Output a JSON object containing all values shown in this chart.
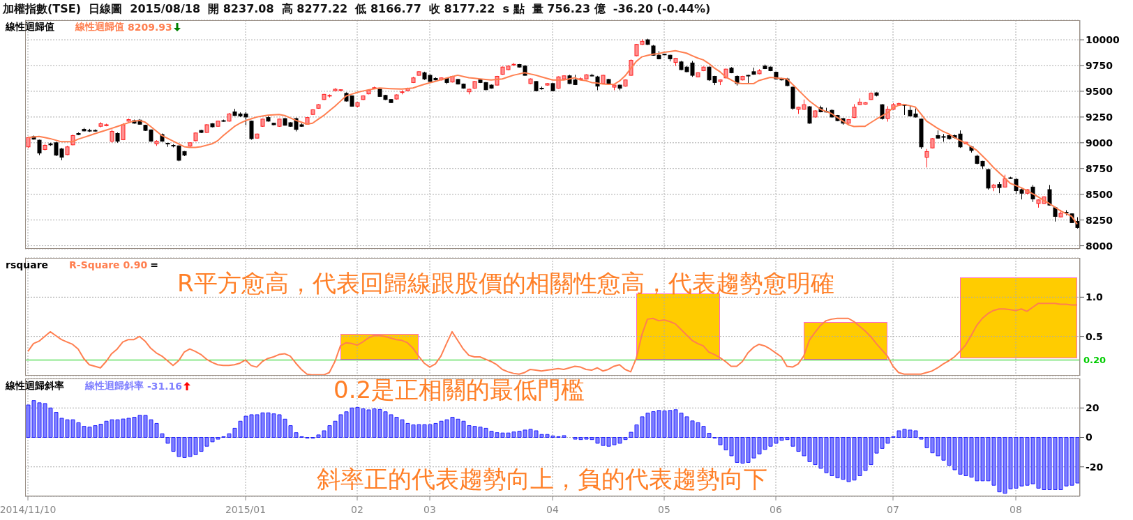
{
  "chart_data": [
    {
      "type": "candlestick",
      "title": "加權指數(TSE)  日線圖  2015/08/18  開 8237.08  高 8277.22  低 8166.77  收 8177.22  s 點  量 756.23 億  -36.20 (-0.44%)",
      "subtitle": "線性迴歸值",
      "categories": [
        "2014/11/10",
        null,
        null,
        null,
        null,
        null,
        null,
        null,
        null,
        null,
        null,
        null,
        null,
        null,
        null,
        null,
        null,
        null,
        null,
        null,
        null,
        null,
        null,
        null,
        null,
        null,
        null,
        null,
        null,
        null,
        null,
        null,
        null,
        null,
        null,
        null,
        null,
        null,
        null,
        "2015/01",
        null,
        null,
        null,
        null,
        null,
        null,
        null,
        null,
        null,
        null,
        null,
        null,
        null,
        null,
        null,
        null,
        null,
        null,
        null,
        "02",
        null,
        null,
        null,
        null,
        null,
        null,
        null,
        null,
        null,
        null,
        null,
        null,
        "03",
        null,
        null,
        null,
        null,
        null,
        null,
        null,
        null,
        null,
        null,
        null,
        null,
        null,
        null,
        null,
        null,
        null,
        null,
        null,
        null,
        null,
        "04",
        null,
        null,
        null,
        null,
        null,
        null,
        null,
        null,
        null,
        null,
        null,
        null,
        null,
        null,
        null,
        null,
        null,
        null,
        null,
        "05",
        null,
        null,
        null,
        null,
        null,
        null,
        null,
        null,
        null,
        null,
        null,
        null,
        null,
        null,
        null,
        null,
        null,
        null,
        null,
        "06",
        null,
        null,
        null,
        null,
        null,
        null,
        null,
        null,
        null,
        null,
        null,
        null,
        null,
        null,
        null,
        null,
        null,
        null,
        null,
        null,
        "07",
        null,
        null,
        null,
        null,
        null,
        null,
        null,
        null,
        null,
        null,
        null,
        null,
        null,
        null,
        null,
        null,
        null,
        null,
        null,
        null,
        null,
        "08",
        null,
        null,
        null,
        null,
        null,
        null,
        null,
        null,
        null,
        null,
        null
      ],
      "ohlc": [
        [
          8960,
          9060,
          8950,
          9050
        ],
        [
          9060,
          9070,
          9030,
          9035
        ],
        [
          9025,
          9030,
          8880,
          8900
        ],
        [
          8935,
          8990,
          8925,
          8975
        ],
        [
          8990,
          9000,
          8970,
          8980
        ],
        [
          9000,
          9010,
          8870,
          8880
        ],
        [
          8940,
          8950,
          8830,
          8860
        ],
        [
          8885,
          8970,
          8880,
          8960
        ],
        [
          8980,
          9080,
          8975,
          9070
        ],
        [
          9090,
          9100,
          9075,
          9080
        ],
        [
          9130,
          9145,
          9110,
          9115
        ],
        [
          9120,
          9135,
          9105,
          9118
        ],
        [
          9120,
          9130,
          9110,
          9118
        ],
        [
          9160,
          9200,
          9150,
          9185
        ],
        [
          9165,
          9185,
          9160,
          9175
        ],
        [
          9015,
          9130,
          9000,
          9110
        ],
        [
          9090,
          9100,
          9000,
          9015
        ],
        [
          9030,
          9190,
          9025,
          9175
        ],
        [
          9210,
          9235,
          9205,
          9225
        ],
        [
          9215,
          9225,
          9185,
          9190
        ],
        [
          9220,
          9230,
          9175,
          9180
        ],
        [
          9170,
          9175,
          9115,
          9120
        ],
        [
          9125,
          9130,
          9010,
          9015
        ],
        [
          8990,
          9025,
          8970,
          9015
        ],
        [
          9080,
          9090,
          9010,
          9015
        ],
        [
          8995,
          9000,
          8960,
          8990
        ],
        [
          8975,
          8985,
          8955,
          8970
        ],
        [
          8970,
          8975,
          8820,
          8830
        ],
        [
          8915,
          8920,
          8870,
          8880
        ],
        [
          8970,
          9005,
          8955,
          9000
        ],
        [
          9020,
          9100,
          9015,
          9095
        ],
        [
          9120,
          9125,
          9095,
          9100
        ],
        [
          9100,
          9180,
          9095,
          9175
        ],
        [
          9185,
          9190,
          9150,
          9155
        ],
        [
          9160,
          9215,
          9155,
          9210
        ],
        [
          9215,
          9225,
          9205,
          9212
        ],
        [
          9210,
          9290,
          9205,
          9280
        ],
        [
          9300,
          9330,
          9260,
          9265
        ],
        [
          9280,
          9295,
          9250,
          9260
        ],
        [
          9280,
          9300,
          9170,
          9250
        ],
        [
          9210,
          9215,
          9030,
          9040
        ],
        [
          9045,
          9090,
          9040,
          9085
        ],
        [
          9160,
          9235,
          9155,
          9230
        ],
        [
          9245,
          9260,
          9205,
          9210
        ],
        [
          9190,
          9195,
          9170,
          9175
        ],
        [
          9160,
          9235,
          9155,
          9230
        ],
        [
          9235,
          9240,
          9165,
          9170
        ],
        [
          9195,
          9200,
          9155,
          9160
        ],
        [
          9235,
          9245,
          9110,
          9130
        ],
        [
          9175,
          9190,
          9155,
          9160
        ],
        [
          9180,
          9250,
          9175,
          9245
        ],
        [
          9275,
          9325,
          9270,
          9320
        ],
        [
          9335,
          9375,
          9330,
          9370
        ],
        [
          9420,
          9475,
          9415,
          9470
        ],
        [
          9455,
          9470,
          9440,
          9460
        ],
        [
          9505,
          9530,
          9500,
          9520
        ],
        [
          9510,
          9520,
          9500,
          9515
        ],
        [
          9480,
          9490,
          9400,
          9405
        ],
        [
          9455,
          9460,
          9350,
          9355
        ],
        [
          9355,
          9395,
          9345,
          9390
        ],
        [
          9420,
          9460,
          9415,
          9455
        ],
        [
          9475,
          9520,
          9470,
          9510
        ],
        [
          9530,
          9545,
          9525,
          9535
        ],
        [
          9520,
          9525,
          9445,
          9450
        ],
        [
          9460,
          9465,
          9415,
          9420
        ],
        [
          9420,
          9425,
          9385,
          9390
        ],
        [
          9425,
          9470,
          9420,
          9465
        ],
        [
          9490,
          9510,
          9470,
          9495
        ],
        [
          9505,
          9535,
          9500,
          9530
        ],
        [
          9585,
          9640,
          9580,
          9630
        ],
        [
          9655,
          9695,
          9650,
          9690
        ],
        [
          9680,
          9690,
          9610,
          9620
        ],
        [
          9655,
          9665,
          9585,
          9595
        ],
        [
          9625,
          9635,
          9605,
          9610
        ],
        [
          9610,
          9635,
          9605,
          9630
        ],
        [
          9625,
          9630,
          9570,
          9585
        ],
        [
          9590,
          9650,
          9585,
          9645
        ],
        [
          9615,
          9620,
          9565,
          9570
        ],
        [
          9570,
          9575,
          9525,
          9530
        ],
        [
          9495,
          9525,
          9470,
          9520
        ],
        [
          9530,
          9600,
          9525,
          9595
        ],
        [
          9610,
          9620,
          9580,
          9585
        ],
        [
          9585,
          9590,
          9510,
          9515
        ],
        [
          9560,
          9565,
          9525,
          9530
        ],
        [
          9560,
          9650,
          9555,
          9645
        ],
        [
          9665,
          9740,
          9660,
          9735
        ],
        [
          9710,
          9750,
          9705,
          9745
        ],
        [
          9760,
          9775,
          9745,
          9762
        ],
        [
          9760,
          9765,
          9730,
          9735
        ],
        [
          9745,
          9755,
          9650,
          9655
        ],
        [
          9575,
          9625,
          9570,
          9620
        ],
        [
          9595,
          9600,
          9500,
          9505
        ],
        [
          9530,
          9545,
          9515,
          9528
        ],
        [
          9560,
          9580,
          9555,
          9575
        ],
        [
          9575,
          9580,
          9500,
          9505
        ],
        [
          9530,
          9645,
          9525,
          9640
        ],
        [
          9620,
          9655,
          9615,
          9650
        ],
        [
          9650,
          9660,
          9570,
          9575
        ],
        [
          9610,
          9660,
          9560,
          9565
        ],
        [
          9620,
          9635,
          9610,
          9622
        ],
        [
          9620,
          9665,
          9615,
          9660
        ],
        [
          9655,
          9670,
          9645,
          9655
        ],
        [
          9640,
          9650,
          9510,
          9550
        ],
        [
          9575,
          9660,
          9570,
          9655
        ],
        [
          9615,
          9620,
          9570,
          9575
        ],
        [
          9540,
          9565,
          9510,
          9560
        ],
        [
          9560,
          9565,
          9510,
          9530
        ],
        [
          9550,
          9615,
          9545,
          9610
        ],
        [
          9655,
          9810,
          9650,
          9800
        ],
        [
          9845,
          9960,
          9840,
          9955
        ],
        [
          9955,
          10005,
          9950,
          9985
        ],
        [
          10000,
          10010,
          9950,
          9955
        ],
        [
          9940,
          9950,
          9845,
          9850
        ],
        [
          9850,
          9890,
          9810,
          9815
        ],
        [
          9860,
          9865,
          9850,
          9855
        ],
        [
          9850,
          9855,
          9790,
          9815
        ],
        [
          9780,
          9825,
          9745,
          9820
        ],
        [
          9785,
          9795,
          9705,
          9710
        ],
        [
          9735,
          9745,
          9685,
          9690
        ],
        [
          9775,
          9795,
          9640,
          9655
        ],
        [
          9640,
          9685,
          9635,
          9680
        ],
        [
          9700,
          9740,
          9695,
          9735
        ],
        [
          9735,
          9740,
          9600,
          9610
        ],
        [
          9645,
          9650,
          9560,
          9585
        ],
        [
          9595,
          9615,
          9560,
          9610
        ],
        [
          9630,
          9720,
          9625,
          9715
        ],
        [
          9725,
          9735,
          9675,
          9680
        ],
        [
          9645,
          9655,
          9555,
          9575
        ],
        [
          9610,
          9650,
          9605,
          9645
        ],
        [
          9655,
          9660,
          9580,
          9655
        ],
        [
          9690,
          9730,
          9660,
          9665
        ],
        [
          9670,
          9715,
          9665,
          9700
        ],
        [
          9745,
          9760,
          9715,
          9720
        ],
        [
          9735,
          9740,
          9695,
          9700
        ],
        [
          9685,
          9690,
          9615,
          9620
        ],
        [
          9625,
          9630,
          9605,
          9610
        ],
        [
          9620,
          9630,
          9550,
          9555
        ],
        [
          9540,
          9545,
          9320,
          9335
        ],
        [
          9325,
          9350,
          9280,
          9345
        ],
        [
          9325,
          9420,
          9320,
          9370
        ],
        [
          9350,
          9355,
          9185,
          9190
        ],
        [
          9250,
          9315,
          9245,
          9310
        ],
        [
          9340,
          9360,
          9295,
          9300
        ],
        [
          9305,
          9340,
          9295,
          9300
        ],
        [
          9315,
          9325,
          9245,
          9250
        ],
        [
          9265,
          9270,
          9210,
          9215
        ],
        [
          9235,
          9240,
          9175,
          9190
        ],
        [
          9190,
          9230,
          9185,
          9225
        ],
        [
          9245,
          9375,
          9240,
          9345
        ],
        [
          9370,
          9430,
          9365,
          9395
        ],
        [
          9375,
          9395,
          9370,
          9390
        ],
        [
          9420,
          9490,
          9415,
          9480
        ],
        [
          9485,
          9490,
          9450,
          9460
        ],
        [
          9370,
          9375,
          9225,
          9235
        ],
        [
          9235,
          9355,
          9205,
          9325
        ],
        [
          9325,
          9385,
          9320,
          9370
        ],
        [
          9370,
          9390,
          9360,
          9380
        ],
        [
          9370,
          9375,
          9270,
          9365
        ],
        [
          9315,
          9360,
          9255,
          9260
        ],
        [
          9280,
          9335,
          9245,
          9250
        ],
        [
          9230,
          9235,
          8940,
          8960
        ],
        [
          8860,
          8940,
          8760,
          8915
        ],
        [
          8950,
          9045,
          8945,
          9040
        ],
        [
          9070,
          9120,
          9040,
          9045
        ],
        [
          9060,
          9085,
          9010,
          9060
        ],
        [
          9070,
          9085,
          9030,
          9040
        ],
        [
          9070,
          9080,
          9040,
          9050
        ],
        [
          9085,
          9120,
          8950,
          8960
        ],
        [
          8990,
          9010,
          8985,
          9005
        ],
        [
          8960,
          8970,
          8905,
          8925
        ],
        [
          8870,
          8885,
          8790,
          8800
        ],
        [
          8820,
          8825,
          8745,
          8775
        ],
        [
          8740,
          8745,
          8545,
          8560
        ],
        [
          8565,
          8600,
          8530,
          8590
        ],
        [
          8595,
          8620,
          8510,
          8565
        ],
        [
          8570,
          8690,
          8565,
          8650
        ],
        [
          8660,
          8670,
          8650,
          8660
        ],
        [
          8645,
          8655,
          8505,
          8535
        ],
        [
          8545,
          8560,
          8450,
          8510
        ],
        [
          8510,
          8550,
          8500,
          8545
        ],
        [
          8570,
          8590,
          8425,
          8455
        ],
        [
          8410,
          8450,
          8370,
          8445
        ],
        [
          8410,
          8480,
          8405,
          8475
        ],
        [
          8545,
          8590,
          8390,
          8395
        ],
        [
          8370,
          8380,
          8235,
          8285
        ],
        [
          8280,
          8350,
          8275,
          8315
        ],
        [
          8325,
          8345,
          8295,
          8320
        ],
        [
          8310,
          8315,
          8225,
          8225
        ],
        [
          8237.08,
          8277.22,
          8166.77,
          8177.22
        ]
      ],
      "series": [
        {
          "type": "line",
          "name": "線性迴歸值",
          "color": "#ff7f50",
          "values": [
            9051,
            9056,
            9062,
            9051,
            9040,
            9025,
            9010,
            9010,
            9010,
            9035,
            9052,
            9070,
            9088,
            9105,
            9122,
            9140,
            9158,
            9176,
            9194,
            9211,
            9216,
            9200,
            9158,
            9114,
            9070,
            9043,
            9016,
            8989,
            8962,
            8955,
            8955,
            8962,
            8976,
            8990,
            9020,
            9070,
            9114,
            9158,
            9190,
            9215,
            9232,
            9250,
            9260,
            9268,
            9272,
            9275,
            9265,
            9242,
            9218,
            9200,
            9182,
            9190,
            9228,
            9265,
            9310,
            9354,
            9404,
            9454,
            9472,
            9489,
            9502,
            9514,
            9523,
            9532,
            9528,
            9525,
            9523,
            9522,
            9527,
            9532,
            9550,
            9567,
            9582,
            9596,
            9612,
            9628,
            9642,
            9656,
            9644,
            9631,
            9626,
            9620,
            9615,
            9610,
            9615,
            9620,
            9638,
            9656,
            9668,
            9681,
            9668,
            9656,
            9640,
            9625,
            9610,
            9610,
            9610,
            9620,
            9631,
            9610,
            9603,
            9585,
            9580,
            9570,
            9567,
            9567,
            9600,
            9650,
            9720,
            9790,
            9834,
            9848,
            9860,
            9866,
            9878,
            9886,
            9894,
            9882,
            9870,
            9846,
            9823,
            9805,
            9770,
            9725,
            9690,
            9640,
            9610,
            9580,
            9574,
            9574,
            9574,
            9605,
            9620,
            9635,
            9630,
            9625,
            9620,
            9567,
            9514,
            9460,
            9407,
            9366,
            9325,
            9304,
            9283,
            9247,
            9211,
            9175,
            9158,
            9159,
            9160,
            9195,
            9229,
            9260,
            9290,
            9340,
            9363,
            9372,
            9360,
            9347,
            9280,
            9211,
            9176,
            9140,
            9110,
            9086,
            9051,
            9024,
            8998,
            8963,
            8927,
            8874,
            8820,
            8760,
            8710,
            8660,
            8606,
            8585,
            8563,
            8535,
            8505,
            8475,
            8440,
            8410,
            8375,
            8339,
            8312,
            8285,
            8210
          ]
        }
      ],
      "annotations": [
        "8209.93"
      ],
      "ylim": [
        7970,
        10190
      ],
      "yticks": [
        8000,
        8250,
        8500,
        8750,
        9000,
        9250,
        9500,
        9750,
        10000
      ],
      "grid": true,
      "legend": "top left",
      "tick_labels": "y"
    },
    {
      "type": "line",
      "title": "rsquare",
      "categories": [
        "2014/11/10",
        null,
        null,
        null,
        null,
        null,
        null,
        null,
        null,
        null,
        null,
        null,
        null,
        null,
        null,
        null,
        null,
        null,
        null,
        null,
        null,
        null,
        null,
        null,
        null,
        null,
        null,
        null,
        null,
        null,
        null,
        null,
        null,
        null,
        null,
        null,
        null,
        null,
        null,
        "2015/01",
        null,
        null,
        null,
        null,
        null,
        null,
        null,
        null,
        null,
        null,
        null,
        null,
        null,
        null,
        null,
        null,
        null,
        null,
        null,
        "02",
        null,
        null,
        null,
        null,
        null,
        null,
        null,
        null,
        null,
        null,
        null,
        null,
        "03",
        null,
        null,
        null,
        null,
        null,
        null,
        null,
        null,
        null,
        null,
        null,
        null,
        null,
        null,
        null,
        null,
        null,
        null,
        null,
        null,
        null,
        "04",
        null,
        null,
        null,
        null,
        null,
        null,
        null,
        null,
        null,
        null,
        null,
        null,
        null,
        null,
        null,
        null,
        null,
        null,
        null,
        "05",
        null,
        null,
        null,
        null,
        null,
        null,
        null,
        null,
        null,
        null,
        null,
        null,
        null,
        null,
        null,
        null,
        null,
        null,
        null,
        "06",
        null,
        null,
        null,
        null,
        null,
        null,
        null,
        null,
        null,
        null,
        null,
        null,
        null,
        null,
        null,
        null,
        null,
        null,
        null,
        null,
        "07",
        null,
        null,
        null,
        null,
        null,
        null,
        null,
        null,
        null,
        null,
        null,
        null,
        null,
        null,
        null,
        null,
        null,
        null,
        null,
        null,
        null,
        "08",
        null,
        null,
        null,
        null,
        null,
        null,
        null,
        null,
        null,
        null,
        null
      ],
      "series": [
        {
          "name": "R-Square",
          "color": "#ff7f50",
          "values": [
            0.31,
            0.41,
            0.44,
            0.5,
            0.56,
            0.51,
            0.46,
            0.43,
            0.4,
            0.34,
            0.22,
            0.14,
            0.12,
            0.1,
            0.18,
            0.28,
            0.34,
            0.43,
            0.46,
            0.46,
            0.5,
            0.44,
            0.35,
            0.29,
            0.25,
            0.19,
            0.13,
            0.19,
            0.3,
            0.34,
            0.31,
            0.27,
            0.21,
            0.17,
            0.14,
            0.13,
            0.13,
            0.14,
            0.16,
            0.2,
            0.13,
            0.11,
            0.18,
            0.22,
            0.24,
            0.27,
            0.28,
            0.25,
            0.16,
            0.08,
            0.02,
            0.01,
            0.01,
            0.01,
            0.04,
            0.18,
            0.38,
            0.42,
            0.41,
            0.39,
            0.43,
            0.48,
            0.51,
            0.51,
            0.5,
            0.48,
            0.46,
            0.45,
            0.42,
            0.35,
            0.25,
            0.16,
            0.11,
            0.15,
            0.25,
            0.41,
            0.56,
            0.45,
            0.34,
            0.26,
            0.24,
            0.24,
            0.21,
            0.18,
            0.14,
            0.08,
            0.05,
            0.03,
            0.02,
            0.04,
            0.08,
            0.07,
            0.06,
            0.07,
            0.08,
            0.09,
            0.08,
            0.1,
            0.12,
            0.11,
            0.08,
            0.07,
            0.1,
            0.06,
            0.08,
            0.12,
            0.14,
            0.08,
            0.05,
            0.22,
            0.52,
            0.72,
            0.73,
            0.7,
            0.71,
            0.69,
            0.66,
            0.59,
            0.52,
            0.45,
            0.41,
            0.38,
            0.3,
            0.27,
            0.23,
            0.18,
            0.12,
            0.12,
            0.18,
            0.29,
            0.36,
            0.4,
            0.38,
            0.34,
            0.29,
            0.24,
            0.12,
            0.11,
            0.15,
            0.25,
            0.45,
            0.55,
            0.64,
            0.7,
            0.72,
            0.73,
            0.73,
            0.73,
            0.69,
            0.63,
            0.57,
            0.5,
            0.41,
            0.33,
            0.25,
            0.12,
            0.04,
            0.02,
            0.02,
            0.02,
            0.02,
            0.04,
            0.06,
            0.1,
            0.15,
            0.19,
            0.24,
            0.31,
            0.39,
            0.51,
            0.64,
            0.73,
            0.79,
            0.83,
            0.85,
            0.85,
            0.84,
            0.83,
            0.85,
            0.82,
            0.87,
            0.92,
            0.92,
            0.92,
            0.92,
            0.91,
            0.91,
            0.9,
            0.9
          ]
        }
      ],
      "ylim": [
        0,
        1.5
      ],
      "yticks": [
        0.5,
        {
          "value": 1,
          "label": "1.0"
        }
      ],
      "ref_lines": [
        {
          "axis": "y",
          "value": 0.2,
          "label": "0.20",
          "color": "#00cc00"
        }
      ],
      "annotations": [
        "0.90",
        "=",
        "R平方愈高，代表回歸線跟股價的相關性愈高，代表趨勢愈明確"
      ],
      "grid": true,
      "legend": "top left",
      "tick_labels": "y"
    },
    {
      "type": "bar",
      "title": "線性迴歸斜率",
      "categories": [
        "2014/11/10",
        null,
        null,
        null,
        null,
        null,
        null,
        null,
        null,
        null,
        null,
        null,
        null,
        null,
        null,
        null,
        null,
        null,
        null,
        null,
        null,
        null,
        null,
        null,
        null,
        null,
        null,
        null,
        null,
        null,
        null,
        null,
        null,
        null,
        null,
        null,
        null,
        null,
        null,
        "2015/01",
        null,
        null,
        null,
        null,
        null,
        null,
        null,
        null,
        null,
        null,
        null,
        null,
        null,
        null,
        null,
        null,
        null,
        null,
        null,
        "02",
        null,
        null,
        null,
        null,
        null,
        null,
        null,
        null,
        null,
        null,
        null,
        null,
        "03",
        null,
        null,
        null,
        null,
        null,
        null,
        null,
        null,
        null,
        null,
        null,
        null,
        null,
        null,
        null,
        null,
        null,
        null,
        null,
        null,
        null,
        "04",
        null,
        null,
        null,
        null,
        null,
        null,
        null,
        null,
        null,
        null,
        null,
        null,
        null,
        null,
        null,
        null,
        null,
        null,
        null,
        "05",
        null,
        null,
        null,
        null,
        null,
        null,
        null,
        null,
        null,
        null,
        null,
        null,
        null,
        null,
        null,
        null,
        null,
        null,
        null,
        "06",
        null,
        null,
        null,
        null,
        null,
        null,
        null,
        null,
        null,
        null,
        null,
        null,
        null,
        null,
        null,
        null,
        null,
        null,
        null,
        null,
        "07",
        null,
        null,
        null,
        null,
        null,
        null,
        null,
        null,
        null,
        null,
        null,
        null,
        null,
        null,
        null,
        null,
        null,
        null,
        null,
        null,
        null,
        "08",
        null,
        null,
        null,
        null,
        null,
        null,
        null,
        null,
        null,
        null,
        null
      ],
      "series": [
        {
          "name": "線性迴歸斜率",
          "color": "#8080ff",
          "values": [
            22,
            25,
            23.5,
            23,
            20,
            17,
            13,
            12,
            12,
            10,
            7.5,
            7,
            8,
            9,
            11,
            12,
            12,
            12.5,
            13,
            13.7,
            15,
            15,
            12,
            9.5,
            2.5,
            -4,
            -9.5,
            -13,
            -13.7,
            -13,
            -11.7,
            -9.5,
            -6,
            -3,
            -1.2,
            0.5,
            2.5,
            6.2,
            11,
            14.4,
            15.4,
            15.4,
            16.7,
            16.7,
            16,
            15.4,
            12.4,
            8,
            3.2,
            0.5,
            -0.5,
            -0.5,
            1.7,
            4.5,
            8,
            11,
            15.4,
            17.4,
            20,
            20.4,
            19.4,
            18.7,
            19.4,
            19,
            17.4,
            15.4,
            13.7,
            12,
            9.5,
            8.5,
            8.7,
            8.7,
            8.7,
            9.5,
            11,
            12,
            13.7,
            12.4,
            11,
            8,
            7.5,
            7,
            6.2,
            4.2,
            3.2,
            3,
            3,
            3.7,
            4.2,
            5,
            5.5,
            4.5,
            2,
            2,
            1,
            0.5,
            1.2,
            0,
            -1.2,
            -1.5,
            -1.2,
            -1.5,
            -4,
            -5.5,
            -6,
            -5,
            -4,
            -1.5,
            3.5,
            8.5,
            14,
            16.5,
            17.5,
            18.3,
            18,
            18.3,
            18.8,
            16.5,
            14,
            11.2,
            10,
            7.5,
            2.8,
            -0.5,
            -5,
            -8.5,
            -12.5,
            -17,
            -17.5,
            -17,
            -14,
            -11.2,
            -8.2,
            -6,
            -4,
            -2,
            -1.5,
            -6,
            -9.5,
            -12.5,
            -16.5,
            -18.5,
            -21,
            -24,
            -26,
            -27.5,
            -28.5,
            -30,
            -29,
            -26,
            -22.5,
            -18.5,
            -10.7,
            -7.5,
            -4,
            0.5,
            4.5,
            5.5,
            5,
            4.5,
            -1.2,
            -7,
            -10.5,
            -12.5,
            -15.5,
            -19,
            -22,
            -25,
            -26,
            -27,
            -29.5,
            -29.5,
            -29.5,
            -32.5,
            -37,
            -38,
            -35,
            -34.5,
            -33,
            -32.5,
            -31.5,
            -34.5,
            -35.5,
            -35.5,
            -35.5,
            -35.5,
            -33,
            -32.5,
            -31
          ]
        }
      ],
      "ylim": [
        -40,
        40
      ],
      "yticks": [
        -20,
        0,
        20
      ],
      "annotations": [
        "-31.16",
        "0.2是正相關的最低門檻",
        "斜率正的代表趨勢向上，負的代表趨勢向下"
      ],
      "grid": true,
      "legend": "top left"
    }
  ]
}
